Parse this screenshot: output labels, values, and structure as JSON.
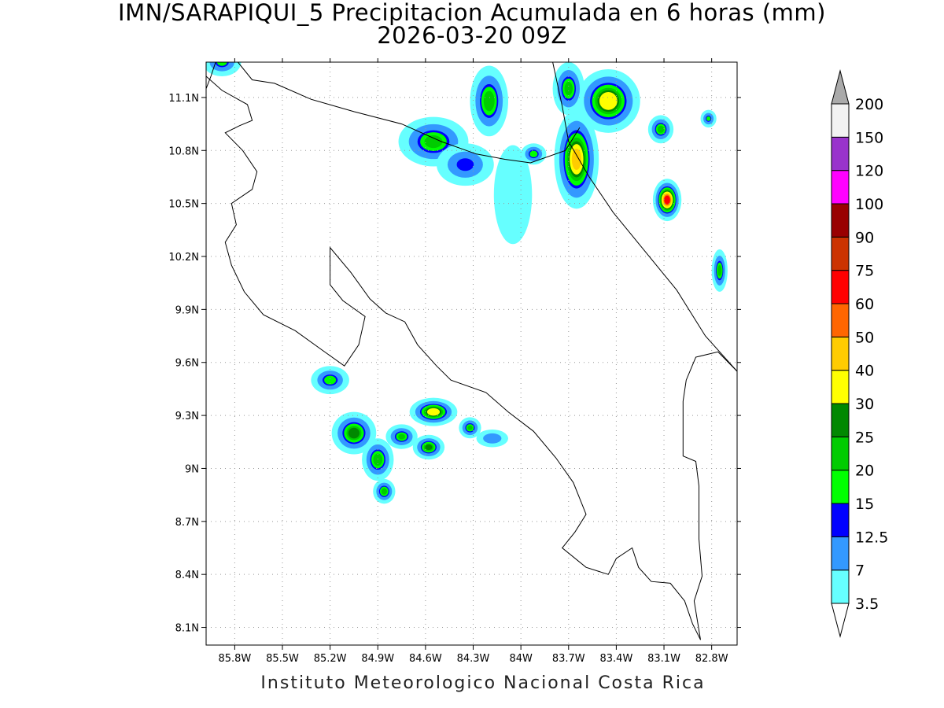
{
  "title": {
    "line1": "IMN/SARAPIQUI_5 Precipitacion Acumulada en 6 horas (mm)",
    "line2": "2026-03-20 09Z"
  },
  "footer": "Instituto Meteorologico Nacional Costa Rica",
  "map": {
    "lon_range": [
      -85.98,
      -82.64
    ],
    "lat_range": [
      8.0,
      11.3
    ],
    "lon_ticks": [
      {
        "value": -85.8,
        "label": "85.8W"
      },
      {
        "value": -85.5,
        "label": "85.5W"
      },
      {
        "value": -85.2,
        "label": "85.2W"
      },
      {
        "value": -84.9,
        "label": "84.9W"
      },
      {
        "value": -84.6,
        "label": "84.6W"
      },
      {
        "value": -84.3,
        "label": "84.3W"
      },
      {
        "value": -84.0,
        "label": "84W"
      },
      {
        "value": -83.7,
        "label": "83.7W"
      },
      {
        "value": -83.4,
        "label": "83.4W"
      },
      {
        "value": -83.1,
        "label": "83.1W"
      },
      {
        "value": -82.8,
        "label": "82.8W"
      }
    ],
    "lat_ticks": [
      {
        "value": 11.1,
        "label": "11.1N"
      },
      {
        "value": 10.8,
        "label": "10.8N"
      },
      {
        "value": 10.5,
        "label": "10.5N"
      },
      {
        "value": 10.2,
        "label": "10.2N"
      },
      {
        "value": 9.9,
        "label": "9.9N"
      },
      {
        "value": 9.6,
        "label": "9.6N"
      },
      {
        "value": 9.3,
        "label": "9.3N"
      },
      {
        "value": 9.0,
        "label": "9N"
      },
      {
        "value": 8.7,
        "label": "8.7N"
      },
      {
        "value": 8.4,
        "label": "8.4N"
      },
      {
        "value": 8.1,
        "label": "8.1N"
      }
    ],
    "grid": "dotted",
    "coastline_lonlat": [
      [
        -85.98,
        11.22
      ],
      [
        -85.88,
        11.14
      ],
      [
        -85.72,
        11.06
      ],
      [
        -85.69,
        10.97
      ],
      [
        -85.77,
        10.94
      ],
      [
        -85.86,
        10.9
      ],
      [
        -85.75,
        10.8
      ],
      [
        -85.66,
        10.68
      ],
      [
        -85.69,
        10.58
      ],
      [
        -85.82,
        10.5
      ],
      [
        -85.79,
        10.38
      ],
      [
        -85.86,
        10.28
      ],
      [
        -85.82,
        10.15
      ],
      [
        -85.74,
        10.0
      ],
      [
        -85.62,
        9.87
      ],
      [
        -85.42,
        9.78
      ],
      [
        -85.25,
        9.67
      ],
      [
        -85.11,
        9.58
      ],
      [
        -85.02,
        9.7
      ],
      [
        -84.98,
        9.86
      ],
      [
        -85.12,
        9.95
      ],
      [
        -85.2,
        10.04
      ],
      [
        -85.2,
        10.14
      ],
      [
        -85.2,
        10.25
      ],
      [
        -85.07,
        10.11
      ],
      [
        -84.95,
        9.96
      ],
      [
        -84.85,
        9.88
      ],
      [
        -84.73,
        9.83
      ],
      [
        -84.65,
        9.7
      ],
      [
        -84.53,
        9.58
      ],
      [
        -84.44,
        9.5
      ],
      [
        -84.22,
        9.43
      ],
      [
        -84.08,
        9.32
      ],
      [
        -83.92,
        9.21
      ],
      [
        -83.78,
        9.06
      ],
      [
        -83.67,
        8.92
      ],
      [
        -83.59,
        8.74
      ],
      [
        -83.66,
        8.64
      ],
      [
        -83.74,
        8.55
      ],
      [
        -83.59,
        8.44
      ],
      [
        -83.45,
        8.4
      ],
      [
        -83.4,
        8.49
      ],
      [
        -83.3,
        8.55
      ],
      [
        -83.26,
        8.44
      ],
      [
        -83.18,
        8.36
      ],
      [
        -83.06,
        8.35
      ],
      [
        -82.97,
        8.25
      ],
      [
        -82.92,
        8.12
      ],
      [
        -82.87,
        8.03
      ]
    ],
    "border_north_lonlat": [
      [
        -85.78,
        11.3
      ],
      [
        -85.69,
        11.2
      ],
      [
        -85.55,
        11.18
      ],
      [
        -85.32,
        11.09
      ],
      [
        -85.05,
        11.02
      ],
      [
        -84.75,
        10.95
      ],
      [
        -84.5,
        10.85
      ],
      [
        -84.28,
        10.78
      ],
      [
        -84.1,
        10.75
      ],
      [
        -83.94,
        10.73
      ],
      [
        -83.72,
        10.8
      ],
      [
        -83.63,
        10.93
      ]
    ],
    "caribbean_coast_lonlat": [
      [
        -83.8,
        11.3
      ],
      [
        -83.74,
        11.05
      ],
      [
        -83.7,
        10.85
      ],
      [
        -83.57,
        10.65
      ],
      [
        -83.42,
        10.45
      ],
      [
        -83.22,
        10.23
      ],
      [
        -83.02,
        10.01
      ],
      [
        -82.84,
        9.75
      ],
      [
        -82.64,
        9.55
      ]
    ],
    "border_panama_lonlat": [
      [
        -82.64,
        9.55
      ],
      [
        -82.76,
        9.66
      ],
      [
        -82.9,
        9.63
      ],
      [
        -82.96,
        9.5
      ],
      [
        -82.98,
        9.38
      ],
      [
        -82.98,
        9.2
      ],
      [
        -82.98,
        9.07
      ],
      [
        -82.9,
        9.04
      ],
      [
        -82.88,
        8.9
      ],
      [
        -82.88,
        8.6
      ],
      [
        -82.86,
        8.39
      ],
      [
        -82.91,
        8.25
      ],
      [
        -82.87,
        8.03
      ]
    ],
    "lake_lonlat": [
      [
        -85.98,
        11.15
      ],
      [
        -85.95,
        11.22
      ],
      [
        -85.92,
        11.3
      ]
    ]
  },
  "precipitation": {
    "cells": [
      {
        "lon": -85.2,
        "lat": 9.5,
        "rx": 0.12,
        "ry": 0.08,
        "peak": 18
      },
      {
        "lon": -85.05,
        "lat": 9.2,
        "rx": 0.14,
        "ry": 0.12,
        "peak": 28
      },
      {
        "lon": -84.9,
        "lat": 9.05,
        "rx": 0.1,
        "ry": 0.12,
        "peak": 24
      },
      {
        "lon": -84.86,
        "lat": 8.87,
        "rx": 0.07,
        "ry": 0.07,
        "peak": 22
      },
      {
        "lon": -84.75,
        "lat": 9.18,
        "rx": 0.1,
        "ry": 0.07,
        "peak": 20
      },
      {
        "lon": -84.55,
        "lat": 9.32,
        "rx": 0.15,
        "ry": 0.08,
        "peak": 36
      },
      {
        "lon": -84.58,
        "lat": 9.12,
        "rx": 0.1,
        "ry": 0.07,
        "peak": 26
      },
      {
        "lon": -84.32,
        "lat": 9.23,
        "rx": 0.07,
        "ry": 0.06,
        "peak": 20
      },
      {
        "lon": -84.18,
        "lat": 9.17,
        "rx": 0.1,
        "ry": 0.05,
        "peak": 12
      },
      {
        "lon": -84.55,
        "lat": 10.85,
        "rx": 0.22,
        "ry": 0.14,
        "peak": 22
      },
      {
        "lon": -84.35,
        "lat": 10.72,
        "rx": 0.18,
        "ry": 0.12,
        "peak": 14
      },
      {
        "lon": -84.2,
        "lat": 11.08,
        "rx": 0.12,
        "ry": 0.2,
        "peak": 24
      },
      {
        "lon": -83.65,
        "lat": 10.75,
        "rx": 0.14,
        "ry": 0.28,
        "peak": 42
      },
      {
        "lon": -83.45,
        "lat": 11.08,
        "rx": 0.2,
        "ry": 0.18,
        "peak": 38
      },
      {
        "lon": -83.7,
        "lat": 11.15,
        "rx": 0.1,
        "ry": 0.15,
        "peak": 22
      },
      {
        "lon": -83.08,
        "lat": 10.52,
        "rx": 0.09,
        "ry": 0.12,
        "peak": 62
      },
      {
        "lon": -83.12,
        "lat": 10.92,
        "rx": 0.08,
        "ry": 0.08,
        "peak": 22
      },
      {
        "lon": -82.75,
        "lat": 10.12,
        "rx": 0.05,
        "ry": 0.12,
        "peak": 22
      },
      {
        "lon": -82.82,
        "lat": 10.98,
        "rx": 0.05,
        "ry": 0.05,
        "peak": 16
      },
      {
        "lon": -85.88,
        "lat": 11.3,
        "rx": 0.12,
        "ry": 0.08,
        "peak": 16
      },
      {
        "lon": -84.05,
        "lat": 10.55,
        "rx": 0.12,
        "ry": 0.28,
        "peak": 6
      },
      {
        "lon": -83.92,
        "lat": 10.78,
        "rx": 0.08,
        "ry": 0.06,
        "peak": 18
      }
    ]
  },
  "colorbar": {
    "levels": [
      "3.5",
      "7",
      "12.5",
      "15",
      "20",
      "25",
      "30",
      "40",
      "50",
      "60",
      "75",
      "90",
      "100",
      "120",
      "150",
      "200"
    ],
    "level_values": [
      3.5,
      7,
      12.5,
      15,
      20,
      25,
      30,
      40,
      50,
      60,
      75,
      90,
      100,
      120,
      150,
      200
    ],
    "colors": [
      "#ffffff",
      "#66ffff",
      "#3399ff",
      "#0000ff",
      "#00ff00",
      "#00cc00",
      "#008800",
      "#ffff00",
      "#ffcc00",
      "#ff6600",
      "#ff0000",
      "#cc3300",
      "#990000",
      "#ff00ff",
      "#9933cc",
      "#f2f2f2",
      "#aaaaaa"
    ]
  }
}
